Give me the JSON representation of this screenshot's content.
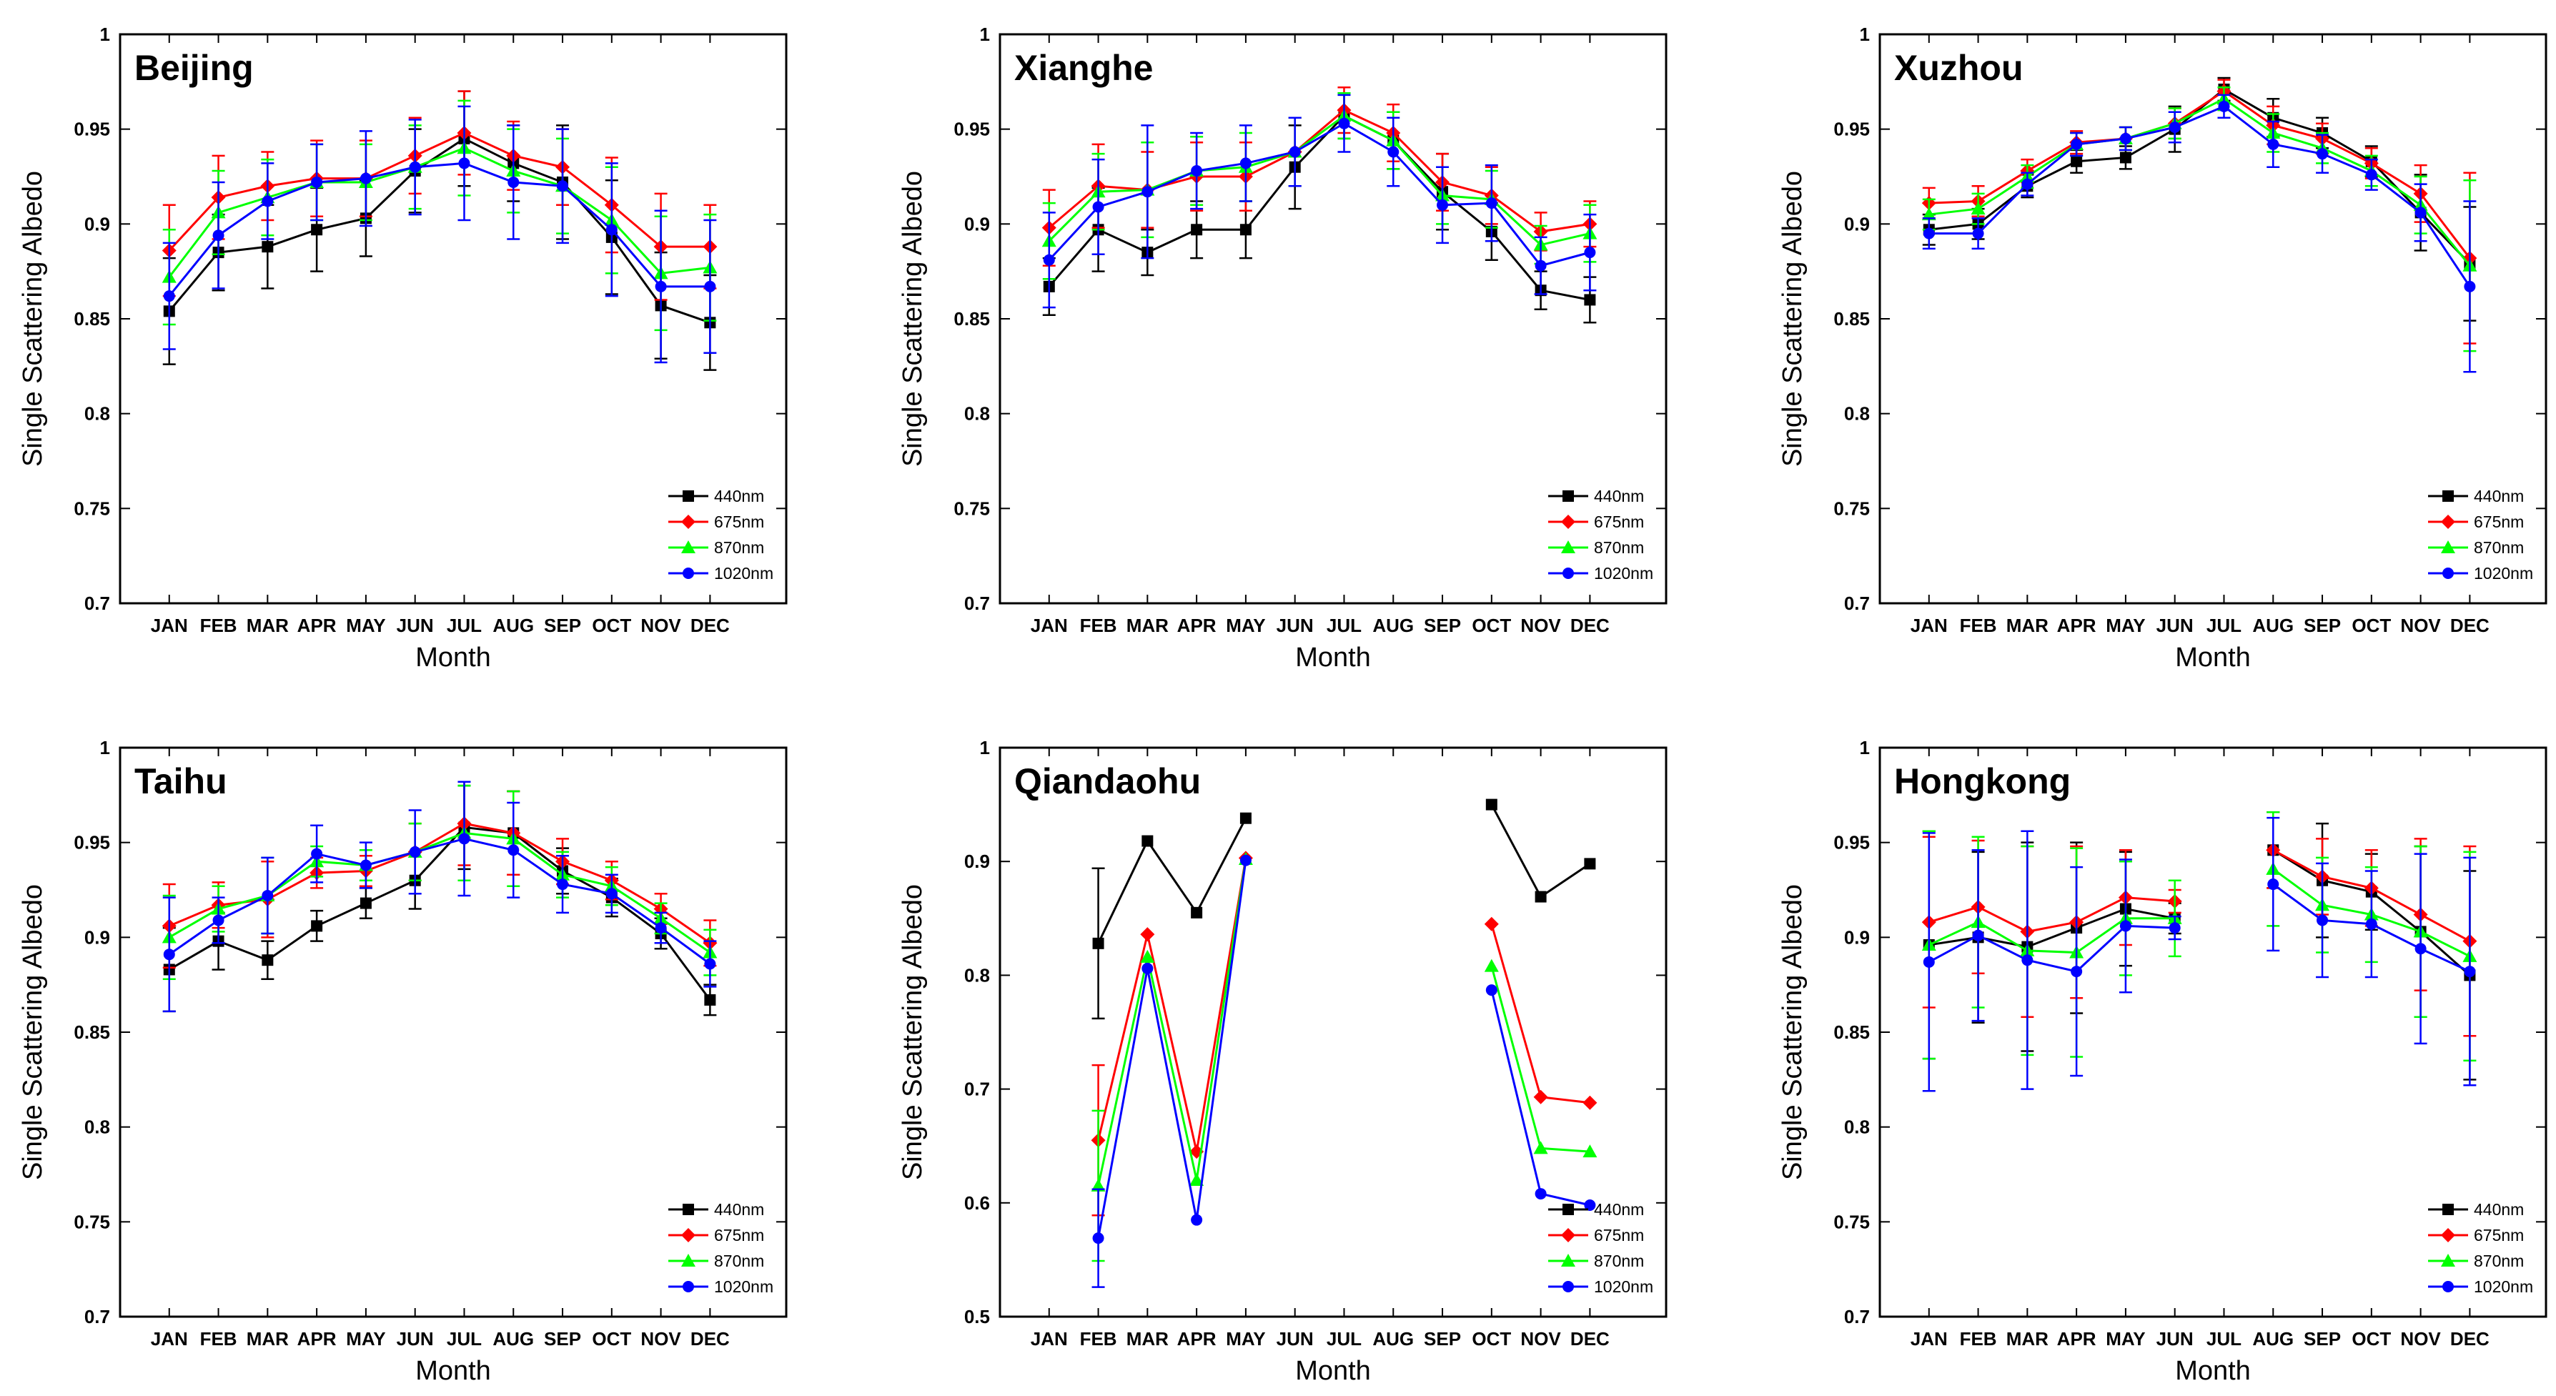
{
  "figure": {
    "xlabel": "Month",
    "ylabel": "Single Scattering Albedo",
    "months": [
      "JAN",
      "FEB",
      "MAR",
      "APR",
      "MAY",
      "JUN",
      "JUL",
      "AUG",
      "SEP",
      "OCT",
      "NOV",
      "DEC"
    ],
    "series_names": [
      "440nm",
      "675nm",
      "870nm",
      "1020nm"
    ],
    "series_colors": [
      "#000000",
      "#ff0000",
      "#00ff00",
      "#0000ff"
    ]
  },
  "chart_data": [
    {
      "type": "line",
      "title": "Beijing",
      "xlabel": "Month",
      "ylabel": "Single Scattering Albedo",
      "ylim": [
        0.7,
        1.0
      ],
      "yticks": [
        "0.7",
        "0.75",
        "0.8",
        "0.85",
        "0.9",
        "0.95",
        "1"
      ],
      "categories": [
        "JAN",
        "FEB",
        "MAR",
        "APR",
        "MAY",
        "JUN",
        "JUL",
        "AUG",
        "SEP",
        "OCT",
        "NOV",
        "DEC"
      ],
      "legend_position": "bottom-right",
      "series": [
        {
          "name": "440nm",
          "values": [
            0.854,
            0.885,
            0.888,
            0.897,
            0.903,
            0.928,
            0.945,
            0.932,
            0.922,
            0.893,
            0.857,
            0.848
          ],
          "err": [
            0.028,
            0.02,
            0.022,
            0.022,
            0.02,
            0.022,
            0.025,
            0.02,
            0.03,
            0.03,
            0.028,
            0.025
          ]
        },
        {
          "name": "675nm",
          "values": [
            0.886,
            0.914,
            0.92,
            0.924,
            0.924,
            0.936,
            0.948,
            0.936,
            0.93,
            0.91,
            0.888,
            0.888
          ],
          "err": [
            0.024,
            0.022,
            0.018,
            0.02,
            0.02,
            0.02,
            0.022,
            0.018,
            0.02,
            0.025,
            0.028,
            0.022
          ]
        },
        {
          "name": "870nm",
          "values": [
            0.872,
            0.906,
            0.914,
            0.922,
            0.922,
            0.93,
            0.94,
            0.928,
            0.92,
            0.902,
            0.874,
            0.877
          ],
          "err": [
            0.025,
            0.022,
            0.02,
            0.02,
            0.02,
            0.022,
            0.025,
            0.022,
            0.025,
            0.028,
            0.03,
            0.028
          ]
        },
        {
          "name": "1020nm",
          "values": [
            0.862,
            0.894,
            0.912,
            0.922,
            0.924,
            0.93,
            0.932,
            0.922,
            0.92,
            0.897,
            0.867,
            0.867
          ],
          "err": [
            0.028,
            0.028,
            0.02,
            0.02,
            0.025,
            0.025,
            0.03,
            0.03,
            0.03,
            0.035,
            0.04,
            0.035
          ]
        }
      ]
    },
    {
      "type": "line",
      "title": "Xianghe",
      "xlabel": "Month",
      "ylabel": "Single Scattering Albedo",
      "ylim": [
        0.7,
        1.0
      ],
      "yticks": [
        "0.7",
        "0.75",
        "0.8",
        "0.85",
        "0.9",
        "0.95",
        "1"
      ],
      "categories": [
        "JAN",
        "FEB",
        "MAR",
        "APR",
        "MAY",
        "JUN",
        "JUL",
        "AUG",
        "SEP",
        "OCT",
        "NOV",
        "DEC"
      ],
      "legend_position": "bottom-right",
      "series": [
        {
          "name": "440nm",
          "values": [
            0.867,
            0.897,
            0.885,
            0.897,
            0.897,
            0.93,
            0.957,
            0.944,
            0.917,
            0.896,
            0.865,
            0.86
          ],
          "err": [
            0.015,
            0.022,
            0.012,
            0.015,
            0.015,
            0.022,
            0.012,
            0.015,
            0.02,
            0.015,
            0.01,
            0.012
          ]
        },
        {
          "name": "675nm",
          "values": [
            0.898,
            0.92,
            0.918,
            0.925,
            0.925,
            0.938,
            0.96,
            0.948,
            0.922,
            0.915,
            0.896,
            0.9
          ],
          "err": [
            0.02,
            0.022,
            0.02,
            0.018,
            0.018,
            0.018,
            0.012,
            0.015,
            0.015,
            0.015,
            0.01,
            0.012
          ]
        },
        {
          "name": "870nm",
          "values": [
            0.891,
            0.917,
            0.918,
            0.928,
            0.93,
            0.938,
            0.957,
            0.944,
            0.915,
            0.913,
            0.889,
            0.895
          ],
          "err": [
            0.02,
            0.02,
            0.025,
            0.018,
            0.018,
            0.018,
            0.012,
            0.015,
            0.015,
            0.015,
            0.01,
            0.015
          ]
        },
        {
          "name": "1020nm",
          "values": [
            0.881,
            0.909,
            0.917,
            0.928,
            0.932,
            0.938,
            0.953,
            0.938,
            0.91,
            0.911,
            0.878,
            0.885
          ],
          "err": [
            0.025,
            0.025,
            0.035,
            0.02,
            0.02,
            0.018,
            0.015,
            0.018,
            0.02,
            0.02,
            0.015,
            0.02
          ]
        }
      ]
    },
    {
      "type": "line",
      "title": "Xuzhou",
      "xlabel": "Month",
      "ylabel": "Single Scattering Albedo",
      "ylim": [
        0.7,
        1.0
      ],
      "yticks": [
        "0.7",
        "0.75",
        "0.8",
        "0.85",
        "0.9",
        "0.95",
        "1"
      ],
      "categories": [
        "JAN",
        "FEB",
        "MAR",
        "APR",
        "MAY",
        "JUN",
        "JUL",
        "AUG",
        "SEP",
        "OCT",
        "NOV",
        "DEC"
      ],
      "legend_position": "bottom-right",
      "series": [
        {
          "name": "440nm",
          "values": [
            0.897,
            0.9,
            0.92,
            0.933,
            0.935,
            0.95,
            0.971,
            0.956,
            0.948,
            0.933,
            0.906,
            0.879
          ],
          "err": [
            0.008,
            0.008,
            0.006,
            0.006,
            0.006,
            0.012,
            0.006,
            0.01,
            0.008,
            0.008,
            0.02,
            0.03
          ]
        },
        {
          "name": "675nm",
          "values": [
            0.911,
            0.912,
            0.928,
            0.943,
            0.945,
            0.953,
            0.97,
            0.952,
            0.945,
            0.932,
            0.916,
            0.882
          ],
          "err": [
            0.008,
            0.008,
            0.006,
            0.006,
            0.006,
            0.008,
            0.006,
            0.01,
            0.008,
            0.008,
            0.015,
            0.045
          ]
        },
        {
          "name": "870nm",
          "values": [
            0.905,
            0.908,
            0.925,
            0.942,
            0.945,
            0.953,
            0.966,
            0.948,
            0.94,
            0.928,
            0.91,
            0.878
          ],
          "err": [
            0.008,
            0.008,
            0.006,
            0.006,
            0.006,
            0.008,
            0.006,
            0.01,
            0.008,
            0.008,
            0.015,
            0.045
          ]
        },
        {
          "name": "1020nm",
          "values": [
            0.895,
            0.895,
            0.921,
            0.942,
            0.945,
            0.951,
            0.962,
            0.942,
            0.937,
            0.926,
            0.906,
            0.867
          ],
          "err": [
            0.008,
            0.008,
            0.006,
            0.006,
            0.006,
            0.008,
            0.006,
            0.012,
            0.01,
            0.008,
            0.015,
            0.045
          ]
        }
      ]
    },
    {
      "type": "line",
      "title": "Taihu",
      "xlabel": "Month",
      "ylabel": "Single Scattering Albedo",
      "ylim": [
        0.7,
        1.0
      ],
      "yticks": [
        "0.7",
        "0.75",
        "0.8",
        "0.85",
        "0.9",
        "0.95",
        "1"
      ],
      "categories": [
        "JAN",
        "FEB",
        "MAR",
        "APR",
        "MAY",
        "JUN",
        "JUL",
        "AUG",
        "SEP",
        "OCT",
        "NOV",
        "DEC"
      ],
      "legend_position": "bottom-right",
      "series": [
        {
          "name": "440nm",
          "values": [
            0.883,
            0.898,
            0.888,
            0.906,
            0.918,
            0.93,
            0.958,
            0.955,
            0.935,
            0.921,
            0.902,
            0.867
          ],
          "err": [
            0.022,
            0.015,
            0.01,
            0.008,
            0.008,
            0.015,
            0.022,
            0.022,
            0.012,
            0.01,
            0.008,
            0.008
          ]
        },
        {
          "name": "675nm",
          "values": [
            0.906,
            0.917,
            0.92,
            0.934,
            0.935,
            0.945,
            0.96,
            0.955,
            0.94,
            0.93,
            0.915,
            0.897
          ],
          "err": [
            0.022,
            0.012,
            0.02,
            0.008,
            0.008,
            0.015,
            0.022,
            0.022,
            0.012,
            0.01,
            0.008,
            0.012
          ]
        },
        {
          "name": "870nm",
          "values": [
            0.9,
            0.915,
            0.922,
            0.94,
            0.938,
            0.945,
            0.955,
            0.952,
            0.933,
            0.927,
            0.91,
            0.892
          ],
          "err": [
            0.022,
            0.012,
            0.02,
            0.008,
            0.008,
            0.015,
            0.025,
            0.025,
            0.012,
            0.01,
            0.008,
            0.012
          ]
        },
        {
          "name": "1020nm",
          "values": [
            0.891,
            0.909,
            0.922,
            0.944,
            0.938,
            0.945,
            0.952,
            0.946,
            0.928,
            0.923,
            0.905,
            0.886
          ],
          "err": [
            0.03,
            0.012,
            0.02,
            0.015,
            0.012,
            0.022,
            0.03,
            0.025,
            0.015,
            0.01,
            0.008,
            0.012
          ]
        }
      ]
    },
    {
      "type": "line",
      "title": "Qiandaohu",
      "xlabel": "Month",
      "ylabel": "Single Scattering Albedo",
      "ylim": [
        0.5,
        1.0
      ],
      "yticks": [
        "0.5",
        "0.6",
        "0.7",
        "0.8",
        "0.9",
        "1"
      ],
      "categories": [
        "JAN",
        "FEB",
        "MAR",
        "APR",
        "MAY",
        "JUN",
        "JUL",
        "AUG",
        "SEP",
        "OCT",
        "NOV",
        "DEC"
      ],
      "legend_position": "bottom-right",
      "series": [
        {
          "name": "440nm",
          "values": [
            null,
            0.828,
            0.918,
            0.855,
            0.938,
            null,
            null,
            null,
            null,
            0.95,
            0.869,
            0.898
          ],
          "err": [
            null,
            0.066,
            0,
            0,
            0,
            null,
            null,
            null,
            null,
            0,
            0,
            0
          ]
        },
        {
          "name": "675nm",
          "values": [
            null,
            0.655,
            0.836,
            0.645,
            0.903,
            null,
            null,
            null,
            null,
            0.845,
            0.693,
            0.688
          ],
          "err": [
            null,
            0.066,
            0,
            0,
            0,
            null,
            null,
            null,
            null,
            0,
            0,
            0
          ]
        },
        {
          "name": "870nm",
          "values": [
            null,
            0.615,
            0.816,
            0.62,
            0.902,
            null,
            null,
            null,
            null,
            0.808,
            0.648,
            0.645
          ],
          "err": [
            null,
            0.066,
            0,
            0,
            0,
            null,
            null,
            null,
            null,
            0,
            0,
            0
          ]
        },
        {
          "name": "1020nm",
          "values": [
            null,
            0.569,
            0.806,
            0.585,
            0.901,
            null,
            null,
            null,
            null,
            0.787,
            0.608,
            0.598
          ],
          "err": [
            null,
            0.043,
            0,
            0,
            0,
            null,
            null,
            null,
            null,
            0,
            0,
            0
          ]
        }
      ]
    },
    {
      "type": "line",
      "title": "Hongkong",
      "xlabel": "Month",
      "ylabel": "Single Scattering Albedo",
      "ylim": [
        0.7,
        1.0
      ],
      "yticks": [
        "0.7",
        "0.75",
        "0.8",
        "0.85",
        "0.9",
        "0.95",
        "1"
      ],
      "categories": [
        "JAN",
        "FEB",
        "MAR",
        "APR",
        "MAY",
        "JUN",
        "JUL",
        "AUG",
        "SEP",
        "OCT",
        "NOV",
        "DEC"
      ],
      "legend_position": "bottom-right",
      "series": [
        {
          "name": "440nm",
          "values": [
            0.896,
            0.9,
            0.895,
            0.905,
            0.915,
            0.91,
            null,
            0.946,
            0.93,
            0.924,
            0.903,
            0.88
          ],
          "err": [
            0.06,
            0.045,
            0.055,
            0.045,
            0.03,
            0.008,
            null,
            0.02,
            0.03,
            0.02,
            0.045,
            0.055
          ]
        },
        {
          "name": "675nm",
          "values": [
            0.908,
            0.916,
            0.903,
            0.908,
            0.921,
            0.919,
            null,
            0.946,
            0.932,
            0.926,
            0.912,
            0.898
          ],
          "err": [
            0.045,
            0.035,
            0.045,
            0.04,
            0.025,
            0.006,
            null,
            0.02,
            0.02,
            0.02,
            0.04,
            0.05
          ]
        },
        {
          "name": "870nm",
          "values": [
            0.896,
            0.908,
            0.893,
            0.892,
            0.91,
            0.91,
            null,
            0.936,
            0.917,
            0.912,
            0.903,
            0.89
          ],
          "err": [
            0.06,
            0.045,
            0.055,
            0.055,
            0.03,
            0.02,
            null,
            0.03,
            0.025,
            0.025,
            0.045,
            0.055
          ]
        },
        {
          "name": "1020nm",
          "values": [
            0.887,
            0.901,
            0.888,
            0.882,
            0.906,
            0.905,
            null,
            0.928,
            0.909,
            0.907,
            0.894,
            0.882
          ],
          "err": [
            0.068,
            0.045,
            0.068,
            0.055,
            0.035,
            0.006,
            null,
            0.035,
            0.03,
            0.028,
            0.05,
            0.06
          ]
        }
      ]
    }
  ]
}
